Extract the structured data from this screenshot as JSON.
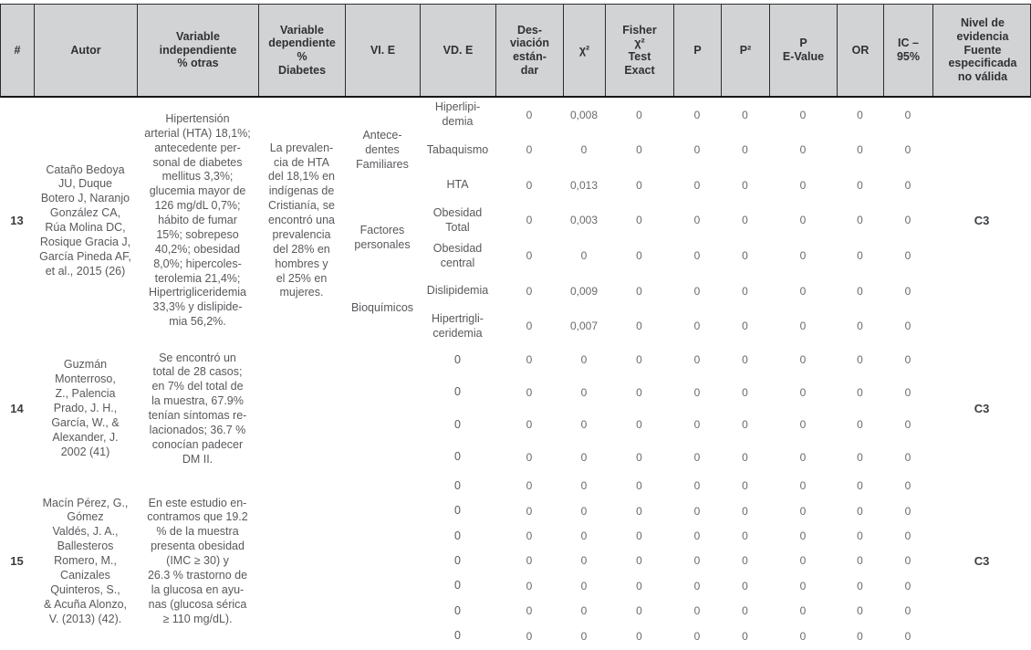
{
  "colors": {
    "header_background": "#d2d3d4",
    "header_border": "#2e2e30",
    "header_text": "#2f3134",
    "body_text": "#58595c"
  },
  "table": {
    "headers": [
      {
        "id": "num",
        "label": "#"
      },
      {
        "id": "autor",
        "label": "Autor"
      },
      {
        "id": "var-indep",
        "label": "Variable\nindependiente\n% otras"
      },
      {
        "id": "var-dep",
        "label": "Variable\ndependiente\n%\nDiabetes"
      },
      {
        "id": "vi-e",
        "label": "VI. E"
      },
      {
        "id": "vd-e",
        "label": "VD. E"
      },
      {
        "id": "desv",
        "label": "Des-\nviación\nestán-\ndar"
      },
      {
        "id": "chi2",
        "label": "χ²"
      },
      {
        "id": "fisher",
        "label": "Fisher\nχ²\nTest\nExact"
      },
      {
        "id": "p",
        "label": "P"
      },
      {
        "id": "p2",
        "label": "P²"
      },
      {
        "id": "p-evalue",
        "label": "P\nE-Value"
      },
      {
        "id": "or",
        "label": "OR"
      },
      {
        "id": "ic95",
        "label": "IC –\n95%"
      },
      {
        "id": "nivel",
        "label": "Nivel de\nevidencia\nFuente\nespecificada\nno válida"
      }
    ],
    "blocks": [
      {
        "num": "13",
        "autor": "Cataño Bedoya\nJU, Duque\nBotero J, Naranjo\nGonzález CA,\nRúa Molina DC,\nRosique Gracia J,\nGarcía Pineda AF,\net al., 2015 (26)",
        "var_indep": "Hipertensión\narterial (HTA) 18,1%;\nantecedente per-\nsonal de diabetes\nmellitus 3,3%;\nglucemia mayor de\n126 mg/dL 0,7%;\nhábito de fumar\n15%; sobrepeso\n40,2%; obesidad\n8,0%; hipercoles-\nterolemia 21,4%;\nHipertrigliceridemia\n33,3% y dislipide-\nmia 56,2%.",
        "var_dep": "La prevalen-\ncia de HTA\ndel 18,1% en\nindígenas de\nCristianía, se\nencontró una\nprevalencia\ndel 28% en\nhombres y\nel 25% en\nmujeres.",
        "vie_groups": [
          {
            "label": "Antece-\ndentes\nFamiliares",
            "span": 3
          },
          {
            "label": "Factores\npersonales",
            "span": 2
          },
          {
            "label": "Bioquímicos",
            "span": 2
          }
        ],
        "subrows": [
          {
            "vde": "Hiperlipi-\ndemia",
            "values": [
              "0",
              "0,008",
              "0",
              "0",
              "0",
              "0",
              "0",
              "0"
            ]
          },
          {
            "vde": "Tabaquismo",
            "values": [
              "0",
              "0",
              "0",
              "0",
              "0",
              "0",
              "0",
              "0"
            ]
          },
          {
            "vde": "HTA",
            "values": [
              "0",
              "0,013",
              "0",
              "0",
              "0",
              "0",
              "0",
              "0"
            ]
          },
          {
            "vde": "Obesidad\nTotal",
            "values": [
              "0",
              "0,003",
              "0",
              "0",
              "0",
              "0",
              "0",
              "0"
            ]
          },
          {
            "vde": "Obesidad\ncentral",
            "values": [
              "0",
              "0",
              "0",
              "0",
              "0",
              "0",
              "0",
              "0"
            ]
          },
          {
            "vde": "Dislipidemia",
            "values": [
              "0",
              "0,009",
              "0",
              "0",
              "0",
              "0",
              "0",
              "0"
            ]
          },
          {
            "vde": "Hipertrigli-\nceridemia",
            "values": [
              "0",
              "0,007",
              "0",
              "0",
              "0",
              "0",
              "0",
              "0"
            ]
          }
        ],
        "nivel": "C3"
      },
      {
        "num": "14",
        "autor": "Guzmán\nMonterroso,\nZ., Palencia\nPrado, J. H.,\nGarcía, W., &\nAlexander, J.\n2002 (41)",
        "var_indep": "Se encontró un\ntotal de 28 casos;\nen 7% del total de\nla muestra, 67.9%\ntenían síntomas re-\nlacionados; 36.7 %\nconocían padecer\nDM II.",
        "var_dep": "",
        "vie_groups": [],
        "subrows": [
          {
            "vde": "0",
            "values": [
              "0",
              "0",
              "0",
              "0",
              "0",
              "0",
              "0",
              "0"
            ]
          },
          {
            "vde": "0",
            "values": [
              "0",
              "0",
              "0",
              "0",
              "0",
              "0",
              "0",
              "0"
            ]
          },
          {
            "vde": "0",
            "values": [
              "0",
              "0",
              "0",
              "0",
              "0",
              "0",
              "0",
              "0"
            ]
          },
          {
            "vde": "0",
            "values": [
              "0",
              "0",
              "0",
              "0",
              "0",
              "0",
              "0",
              "0"
            ]
          }
        ],
        "nivel": "C3"
      },
      {
        "num": "15",
        "autor": "Macín Pérez, G.,\nGómez\nValdés, J. A.,\nBallesteros\nRomero, M.,\nCanizales\nQuinteros, S.,\n& Acuña Alonzo,\nV. (2013) (42).",
        "var_indep": "En este estudio en-\ncontramos que 19.2\n% de la muestra\npresenta obesidad\n(IMC ≥ 30) y\n26.3 % trastorno de\nla glucosa en ayu-\nnas (glucosa sérica\n≥ 110 mg/dL).",
        "var_dep": "",
        "vie_groups": [],
        "subrows": [
          {
            "vde": "0",
            "values": [
              "0",
              "0",
              "0",
              "0",
              "0",
              "0",
              "0",
              "0"
            ]
          },
          {
            "vde": "0",
            "values": [
              "0",
              "0",
              "0",
              "0",
              "0",
              "0",
              "0",
              "0"
            ]
          },
          {
            "vde": "0",
            "values": [
              "0",
              "0",
              "0",
              "0",
              "0",
              "0",
              "0",
              "0"
            ]
          },
          {
            "vde": "0",
            "values": [
              "0",
              "0",
              "0",
              "0",
              "0",
              "0",
              "0",
              "0"
            ]
          },
          {
            "vde": "0",
            "values": [
              "0",
              "0",
              "0",
              "0",
              "0",
              "0",
              "0",
              "0"
            ]
          },
          {
            "vde": "0",
            "values": [
              "0",
              "0",
              "0",
              "0",
              "0",
              "0",
              "0",
              "0"
            ]
          },
          {
            "vde": "0",
            "values": [
              "0",
              "0",
              "0",
              "0",
              "0",
              "0",
              "0",
              "0"
            ]
          }
        ],
        "nivel": "C3"
      }
    ]
  }
}
